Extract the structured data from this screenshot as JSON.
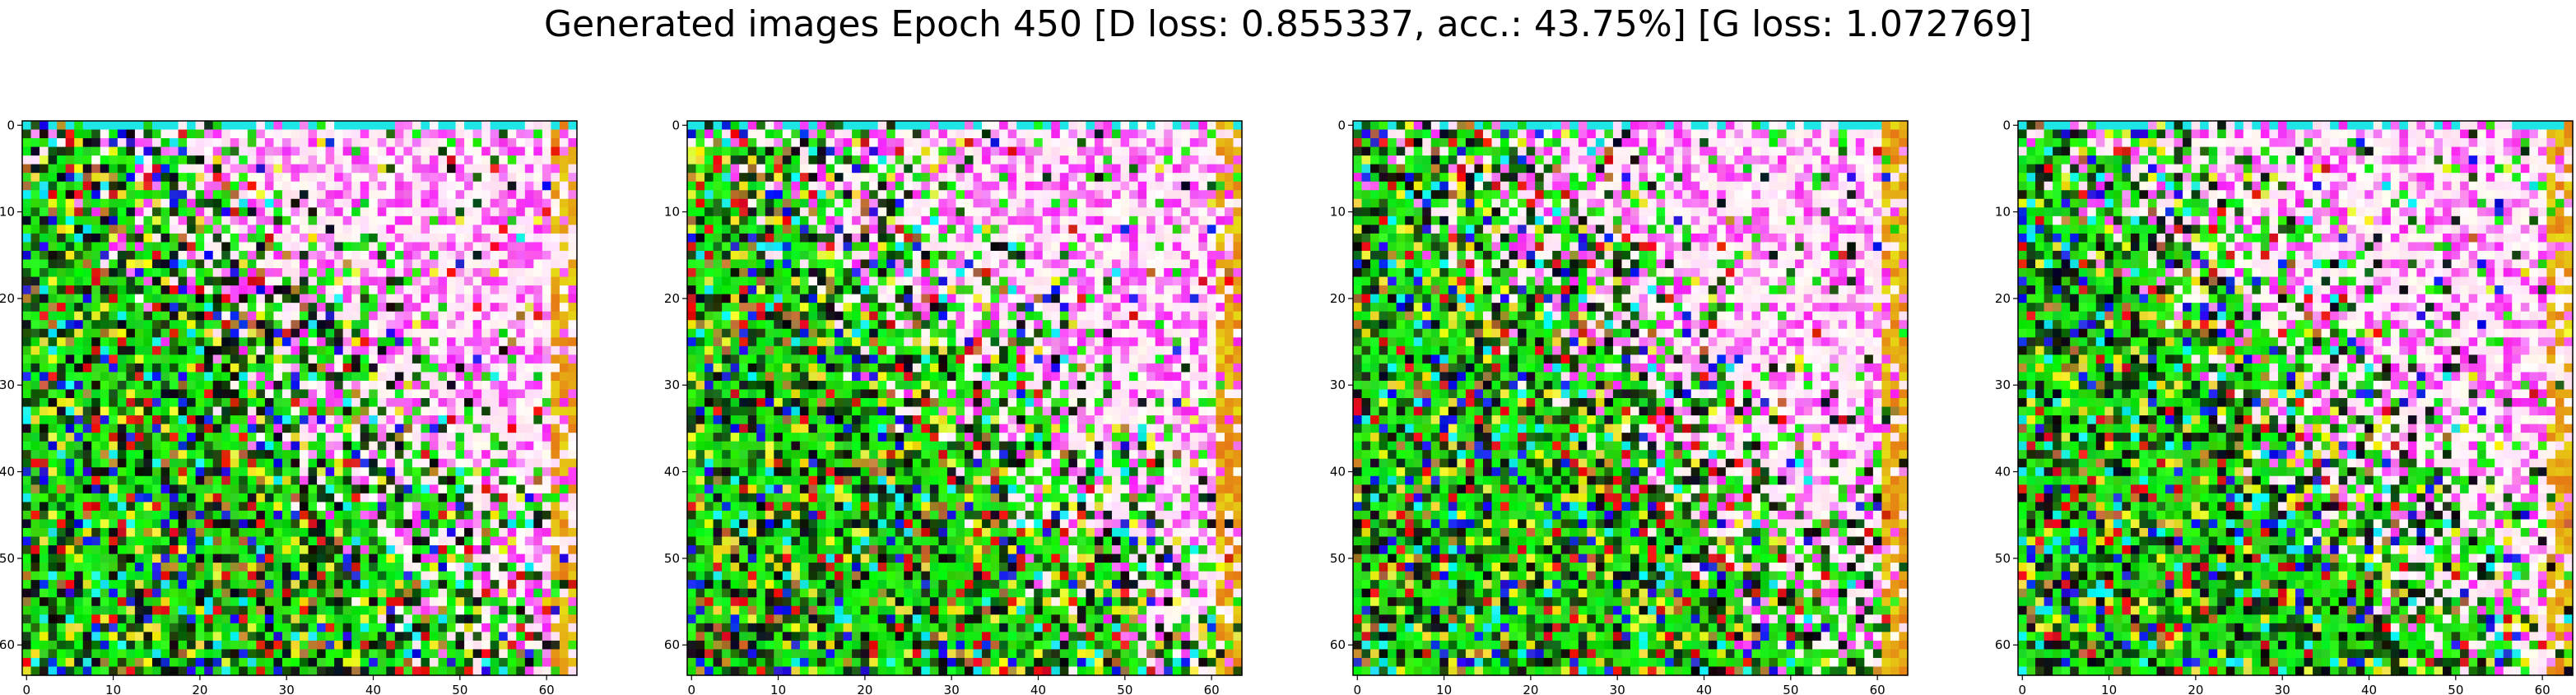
{
  "figure": {
    "title": "Generated images Epoch 450 [D loss: 0.855337, acc.: 43.75%] [G loss: 1.072769]"
  },
  "chart_data": [
    {
      "type": "heatmap",
      "panel": 1,
      "xlim": [
        0,
        63
      ],
      "ylim": [
        63,
        0
      ],
      "xticks": [
        "0",
        "10",
        "20",
        "30",
        "40",
        "50",
        "60"
      ],
      "yticks": [
        "0",
        "10",
        "20",
        "30",
        "40",
        "50",
        "60"
      ],
      "grid": false
    },
    {
      "type": "heatmap",
      "panel": 2,
      "xlim": [
        0,
        63
      ],
      "ylim": [
        63,
        0
      ],
      "xticks": [
        "0",
        "10",
        "20",
        "30",
        "40",
        "50",
        "60"
      ],
      "yticks": [
        "0",
        "10",
        "20",
        "30",
        "40",
        "50",
        "60"
      ],
      "grid": false
    },
    {
      "type": "heatmap",
      "panel": 3,
      "xlim": [
        0,
        63
      ],
      "ylim": [
        63,
        0
      ],
      "xticks": [
        "0",
        "10",
        "20",
        "30",
        "40",
        "50",
        "60"
      ],
      "yticks": [
        "0",
        "10",
        "20",
        "30",
        "40",
        "50",
        "60"
      ],
      "grid": false
    },
    {
      "type": "heatmap",
      "panel": 4,
      "xlim": [
        0,
        63
      ],
      "ylim": [
        63,
        0
      ],
      "xticks": [
        "0",
        "10",
        "20",
        "30",
        "40",
        "50",
        "60"
      ],
      "yticks": [
        "0",
        "10",
        "20",
        "30",
        "40",
        "50",
        "60"
      ],
      "grid": false
    }
  ]
}
